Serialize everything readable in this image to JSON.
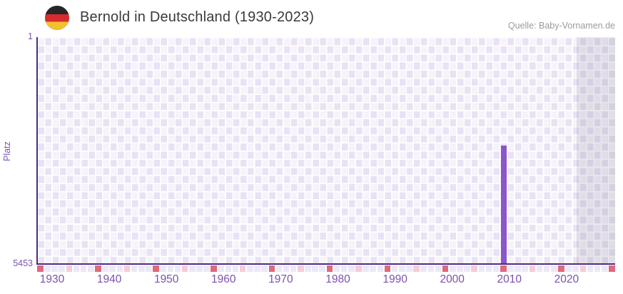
{
  "header": {
    "title": "Bernold in Deutschland (1930-2023)",
    "source": "Quelle: Baby-Vornamen.de",
    "flag_icon": "germany-flag-circle-icon"
  },
  "colors": {
    "bar": "#8a57c8",
    "axis": "#4b2c83",
    "axis_label": "#7b52ad",
    "grid_cell_light": "#f6f3fb",
    "grid_cell_dark": "#e9e2f4",
    "future_overlay": "rgba(96,92,120,0.14)",
    "tick_red": "#e0697a",
    "tick_pink": "#f3cdd8",
    "tick_neutral": "#ede8f7",
    "title_text": "#3a3a3a",
    "source_text": "#9b9b9b"
  },
  "chart_data": {
    "type": "bar",
    "title": "Bernold in Deutschland (1930-2023)",
    "xlabel": "",
    "ylabel": "Platz",
    "y_axis": {
      "min_label": "1",
      "max_label": "5453",
      "min": 1,
      "max": 5453,
      "inverted": true
    },
    "x_axis": {
      "start_year": 1930,
      "end_year": 2023,
      "tick_labels": [
        "1930",
        "1940",
        "1950",
        "1960",
        "1970",
        "1980",
        "1990",
        "2000",
        "2010",
        "2020"
      ]
    },
    "series": [
      {
        "name": "Platz",
        "data": [
          {
            "year": 2009,
            "rank": 2600
          }
        ]
      }
    ],
    "shaded_no_data_region": {
      "from_year": 2022,
      "to_plot_right_edge": true
    },
    "bottom_tick_strip": {
      "cell_count": 80,
      "red_indices": [
        0,
        8,
        16,
        24,
        32,
        40,
        48,
        56,
        64,
        72,
        79
      ],
      "pink_indices": [
        4,
        12,
        20,
        28,
        36,
        44,
        52,
        60,
        68,
        75
      ],
      "meaning": "red = decade marker, pink = half-decade marker"
    },
    "legend": null,
    "grid": "checkerboard lavender cells with white gridlines"
  }
}
